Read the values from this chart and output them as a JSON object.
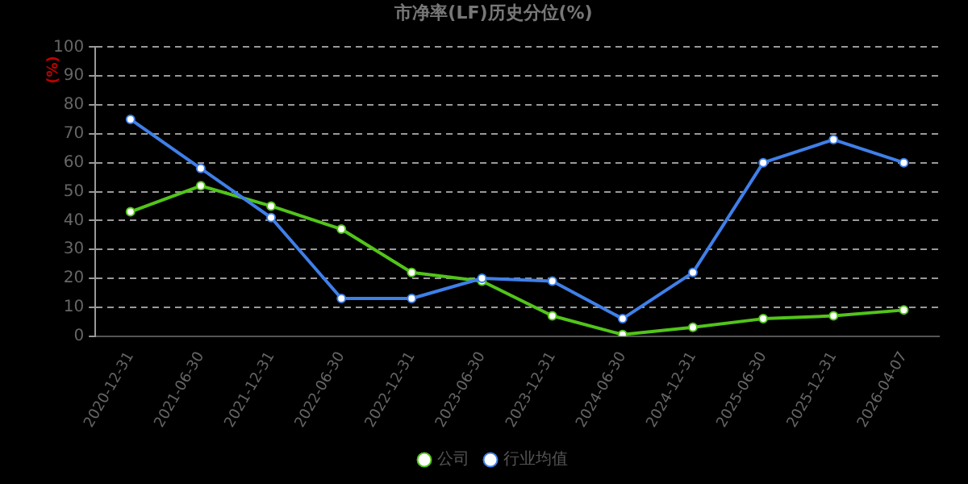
{
  "chart_data": {
    "type": "line",
    "title": "市净率(LF)历史分位(%)",
    "ylabel": "(%)",
    "categories": [
      "2020-12-31",
      "2021-06-30",
      "2021-12-31",
      "2022-06-30",
      "2022-12-31",
      "2023-06-30",
      "2023-12-31",
      "2024-06-30",
      "2024-12-31",
      "2025-06-30",
      "2025-12-31",
      "2026-04-07"
    ],
    "series": [
      {
        "name": "公司",
        "color": "#52c41a",
        "values": [
          43,
          52,
          45,
          37,
          22,
          19,
          7,
          0.5,
          3,
          6,
          7,
          9
        ]
      },
      {
        "name": "行业均值",
        "color": "#3f7fe8",
        "values": [
          75,
          58,
          41,
          13,
          13,
          20,
          19,
          6,
          22,
          60,
          68,
          60
        ]
      }
    ],
    "ylim": [
      0,
      100
    ],
    "yticks": [
      0,
      10,
      20,
      30,
      40,
      50,
      60,
      70,
      80,
      90,
      100
    ],
    "grid": "y",
    "legend": "bottom",
    "marker": "circle"
  }
}
